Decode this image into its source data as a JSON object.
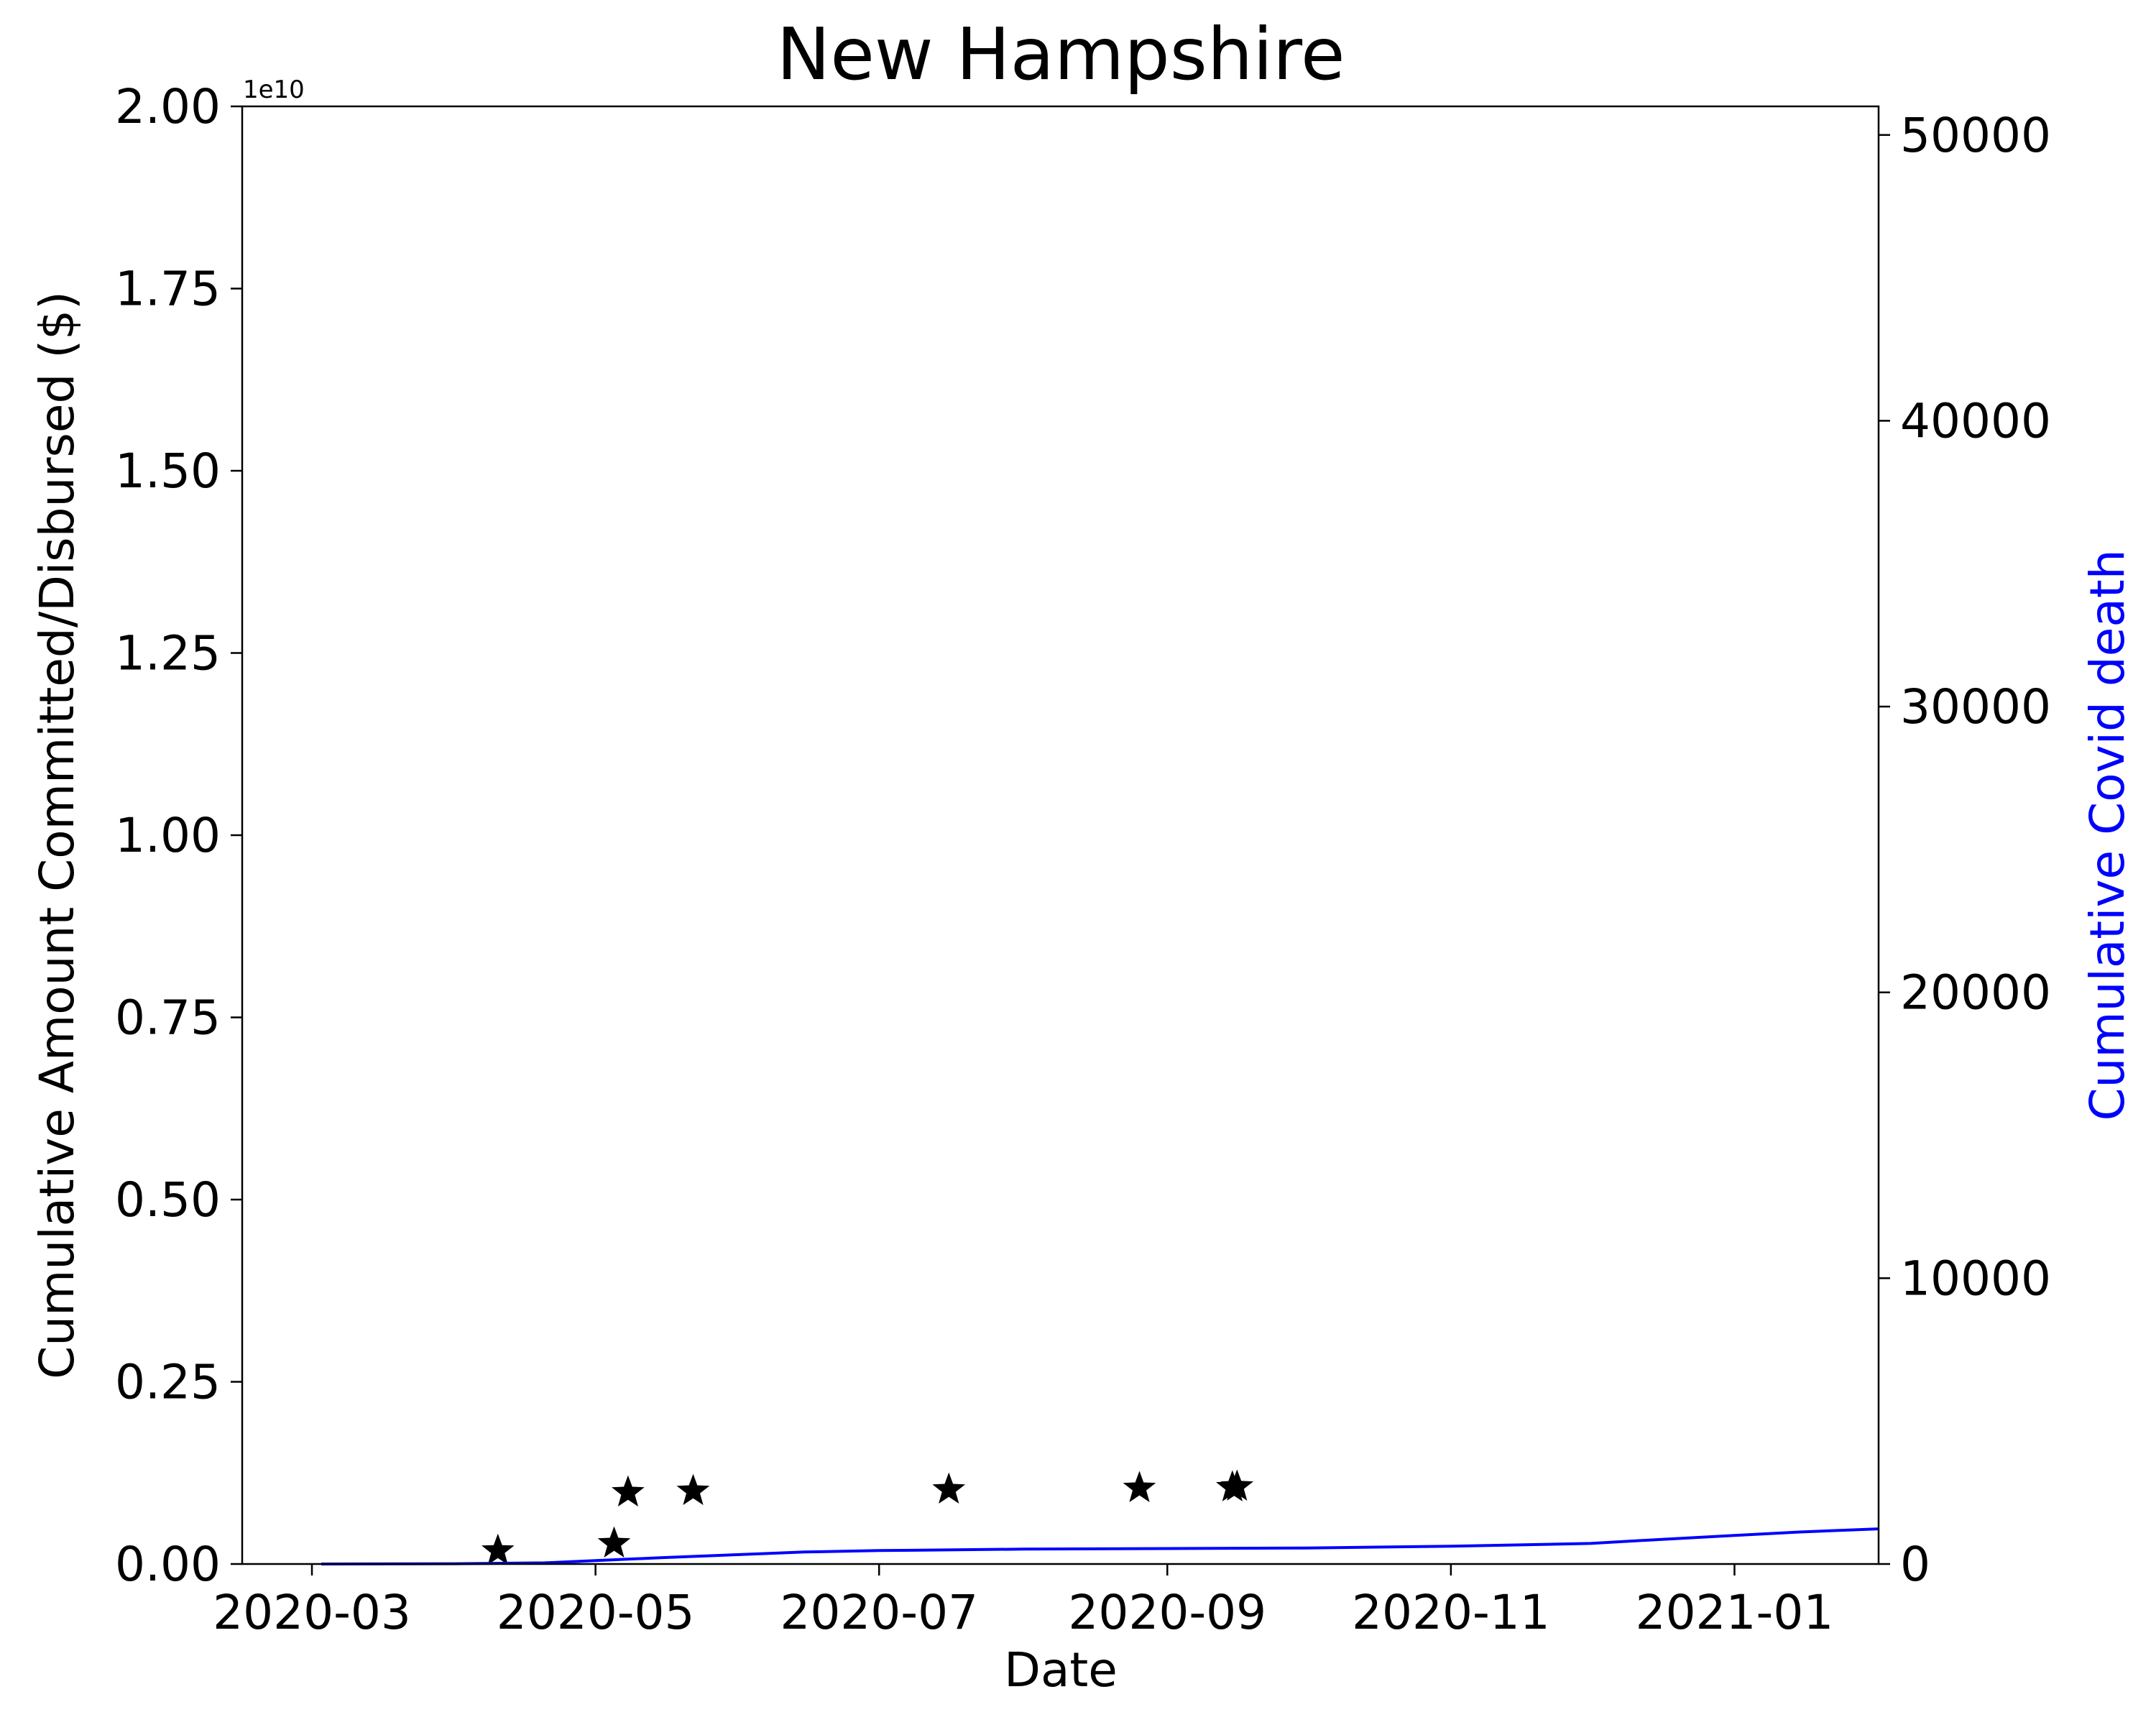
{
  "chart_data": {
    "type": "line",
    "title": "New Hampshire",
    "xlabel": "Date",
    "ylabel": "Cumulative Amount Committed/Disbursed ($)",
    "y2label": "Cumulative Covid death",
    "y_offset_label": "1e10",
    "xlim": [
      "2020-02-15",
      "2021-02-01"
    ],
    "ylim": [
      0,
      20000000000
    ],
    "y2lim": [
      0,
      51000
    ],
    "x_ticks": [
      "2020-03-01",
      "2020-05-01",
      "2020-07-01",
      "2020-09-01",
      "2020-11-01",
      "2021-01-01"
    ],
    "x_tick_labels": [
      "2020-03",
      "2020-05",
      "2020-07",
      "2020-09",
      "2020-11",
      "2021-01"
    ],
    "y_ticks": [
      0,
      2500000000,
      5000000000,
      7500000000,
      10000000000,
      12500000000,
      15000000000,
      17500000000,
      20000000000
    ],
    "y_tick_labels": [
      "0.00",
      "0.25",
      "0.50",
      "0.75",
      "1.00",
      "1.25",
      "1.50",
      "1.75",
      "2.00"
    ],
    "y2_ticks": [
      0,
      10000,
      20000,
      30000,
      40000,
      50000
    ],
    "y2_tick_labels": [
      "0",
      "10000",
      "20000",
      "30000",
      "40000",
      "50000"
    ],
    "grid": false,
    "legend": "none",
    "series": [
      {
        "marker": "star",
        "color": "#000000",
        "axis": "left",
        "points": [
          {
            "x": "2020-04-10",
            "y": 180000000
          },
          {
            "x": "2020-05-05",
            "y": 280000000
          },
          {
            "x": "2020-05-08",
            "y": 980000000
          },
          {
            "x": "2020-05-22",
            "y": 1000000000
          },
          {
            "x": "2020-07-16",
            "y": 1020000000
          },
          {
            "x": "2020-08-26",
            "y": 1040000000
          },
          {
            "x": "2020-09-15",
            "y": 1050000000
          },
          {
            "x": "2020-09-16",
            "y": 1060000000
          }
        ]
      },
      {
        "color": "#0000ff",
        "axis": "right",
        "points": [
          {
            "x": "2020-03-03",
            "y": 0
          },
          {
            "x": "2020-04-01",
            "y": 10
          },
          {
            "x": "2020-04-20",
            "y": 40
          },
          {
            "x": "2020-05-01",
            "y": 120
          },
          {
            "x": "2020-05-15",
            "y": 220
          },
          {
            "x": "2020-06-01",
            "y": 330
          },
          {
            "x": "2020-06-15",
            "y": 420
          },
          {
            "x": "2020-07-01",
            "y": 470
          },
          {
            "x": "2020-08-01",
            "y": 520
          },
          {
            "x": "2020-09-01",
            "y": 540
          },
          {
            "x": "2020-10-01",
            "y": 560
          },
          {
            "x": "2020-11-01",
            "y": 620
          },
          {
            "x": "2020-12-01",
            "y": 720
          },
          {
            "x": "2020-12-15",
            "y": 850
          },
          {
            "x": "2021-01-01",
            "y": 1000
          },
          {
            "x": "2021-01-15",
            "y": 1120
          },
          {
            "x": "2021-02-01",
            "y": 1230
          }
        ]
      }
    ]
  }
}
